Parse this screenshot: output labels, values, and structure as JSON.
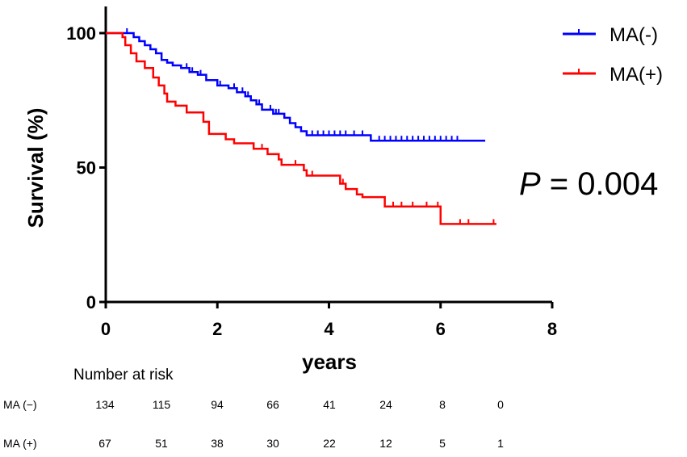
{
  "chart_data": {
    "type": "line",
    "subtype": "kaplan-meier",
    "ylabel": "Survival (%)",
    "xlabel": "years",
    "xlim": [
      0,
      8
    ],
    "ylim": [
      0,
      100
    ],
    "xticks": [
      0,
      2,
      4,
      6,
      8
    ],
    "yticks": [
      0,
      50,
      100
    ],
    "legend_position": "top-right",
    "annotation": {
      "italic": "P",
      "text": " = 0.004"
    },
    "series": [
      {
        "name": "MA(-)",
        "color": "#0000ff",
        "steps": [
          [
            0,
            100
          ],
          [
            0.45,
            100
          ],
          [
            0.5,
            98.5
          ],
          [
            0.6,
            97
          ],
          [
            0.7,
            95.5
          ],
          [
            0.8,
            94
          ],
          [
            0.9,
            92.5
          ],
          [
            1.0,
            90
          ],
          [
            1.1,
            89
          ],
          [
            1.2,
            88
          ],
          [
            1.35,
            87
          ],
          [
            1.5,
            85.5
          ],
          [
            1.65,
            84.5
          ],
          [
            1.8,
            82.5
          ],
          [
            2.0,
            80.5
          ],
          [
            2.2,
            79.5
          ],
          [
            2.35,
            78
          ],
          [
            2.5,
            76.5
          ],
          [
            2.6,
            75
          ],
          [
            2.7,
            73.5
          ],
          [
            2.8,
            71.5
          ],
          [
            3.0,
            70
          ],
          [
            3.2,
            68.5
          ],
          [
            3.3,
            66.5
          ],
          [
            3.4,
            65
          ],
          [
            3.5,
            63.5
          ],
          [
            3.6,
            62
          ],
          [
            4.75,
            60
          ],
          [
            6.8,
            60
          ]
        ],
        "censored": [
          0.38,
          1.45,
          1.55,
          1.7,
          2.05,
          2.3,
          2.45,
          2.55,
          2.75,
          2.95,
          3.05,
          3.1,
          3.3,
          3.7,
          3.8,
          3.9,
          4.0,
          4.1,
          4.2,
          4.3,
          4.45,
          4.6,
          4.9,
          5.0,
          5.1,
          5.2,
          5.3,
          5.4,
          5.5,
          5.6,
          5.7,
          5.8,
          5.9,
          6.0,
          6.1,
          6.2,
          6.3
        ]
      },
      {
        "name": "MA(+)",
        "color": "#ff0000",
        "steps": [
          [
            0,
            100
          ],
          [
            0.3,
            98.5
          ],
          [
            0.35,
            95.5
          ],
          [
            0.45,
            92.5
          ],
          [
            0.55,
            89.5
          ],
          [
            0.7,
            87
          ],
          [
            0.85,
            83.5
          ],
          [
            0.95,
            80.5
          ],
          [
            1.05,
            77.5
          ],
          [
            1.1,
            74.5
          ],
          [
            1.25,
            73
          ],
          [
            1.45,
            70.5
          ],
          [
            1.75,
            67
          ],
          [
            1.85,
            62.5
          ],
          [
            2.15,
            60.5
          ],
          [
            2.3,
            59
          ],
          [
            2.65,
            57
          ],
          [
            2.9,
            55
          ],
          [
            3.1,
            53
          ],
          [
            3.15,
            51
          ],
          [
            3.55,
            49
          ],
          [
            3.6,
            47
          ],
          [
            4.2,
            44
          ],
          [
            4.3,
            42
          ],
          [
            4.5,
            40
          ],
          [
            4.6,
            39
          ],
          [
            5.0,
            35.5
          ],
          [
            6.0,
            29
          ],
          [
            7.0,
            29
          ]
        ],
        "censored": [
          2.8,
          3.4,
          3.7,
          4.25,
          5.15,
          5.3,
          5.5,
          5.75,
          5.95,
          6.35,
          6.5,
          6.95
        ]
      }
    ]
  },
  "risk_table": {
    "title": "Number at risk",
    "times": [
      0,
      1,
      2,
      3,
      4,
      5,
      6,
      7
    ],
    "rows": [
      {
        "label": "MA  (−)",
        "values": [
          "134",
          "115",
          "94",
          "66",
          "41",
          "24",
          "8",
          "0"
        ]
      },
      {
        "label": "MA  (+)",
        "values": [
          "67",
          "51",
          "38",
          "30",
          "22",
          "12",
          "5",
          "1"
        ]
      }
    ]
  }
}
